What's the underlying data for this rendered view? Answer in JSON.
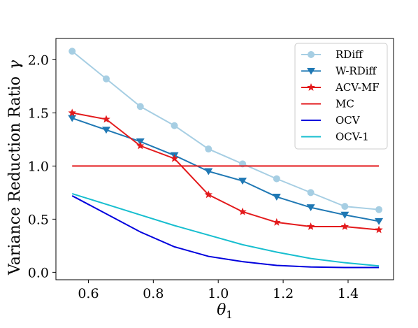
{
  "chart_data": {
    "type": "line",
    "xlabel": "θ",
    "xlabel_sub": "1",
    "ylabel": "Variance Reduction Ratio",
    "ylabel_symbol": "γ",
    "xlim": [
      0.5,
      1.54
    ],
    "ylim": [
      -0.07,
      2.2
    ],
    "xticks": [
      0.6,
      0.8,
      1.0,
      1.2,
      1.4
    ],
    "xtick_labels": [
      "0.6",
      "0.8",
      "1.0",
      "1.2",
      "1.4"
    ],
    "yticks": [
      0.0,
      0.5,
      1.0,
      1.5,
      2.0
    ],
    "ytick_labels": [
      "0.0",
      "0.5",
      "1.0",
      "1.5",
      "2.0"
    ],
    "grid": false,
    "legend_position": "top-right",
    "x": [
      0.55,
      0.655,
      0.76,
      0.865,
      0.97,
      1.075,
      1.18,
      1.285,
      1.39,
      1.495
    ],
    "series": [
      {
        "name": "RDiff",
        "color": "#a6cee3",
        "marker": "circle",
        "values": [
          2.08,
          1.82,
          1.56,
          1.38,
          1.16,
          1.02,
          0.88,
          0.75,
          0.62,
          0.59
        ]
      },
      {
        "name": "W-RDiff",
        "color": "#1f78b4",
        "marker": "triangle-down",
        "values": [
          1.45,
          1.34,
          1.23,
          1.1,
          0.95,
          0.86,
          0.71,
          0.61,
          0.54,
          0.48
        ]
      },
      {
        "name": "ACV-MF",
        "color": "#e31a1c",
        "marker": "star",
        "values": [
          1.5,
          1.44,
          1.19,
          1.07,
          0.73,
          0.57,
          0.47,
          0.43,
          0.43,
          0.4
        ]
      },
      {
        "name": "MC",
        "color": "#e31a1c",
        "marker": "none",
        "values": [
          1.0,
          1.0,
          1.0,
          1.0,
          1.0,
          1.0,
          1.0,
          1.0,
          1.0,
          1.0
        ]
      },
      {
        "name": "OCV",
        "color": "#0000dd",
        "marker": "none",
        "values": [
          0.72,
          0.55,
          0.38,
          0.24,
          0.15,
          0.1,
          0.065,
          0.05,
          0.045,
          0.045
        ]
      },
      {
        "name": "OCV-1",
        "color": "#17becf",
        "marker": "none",
        "values": [
          0.74,
          0.64,
          0.54,
          0.44,
          0.35,
          0.26,
          0.19,
          0.13,
          0.09,
          0.06
        ]
      }
    ]
  }
}
